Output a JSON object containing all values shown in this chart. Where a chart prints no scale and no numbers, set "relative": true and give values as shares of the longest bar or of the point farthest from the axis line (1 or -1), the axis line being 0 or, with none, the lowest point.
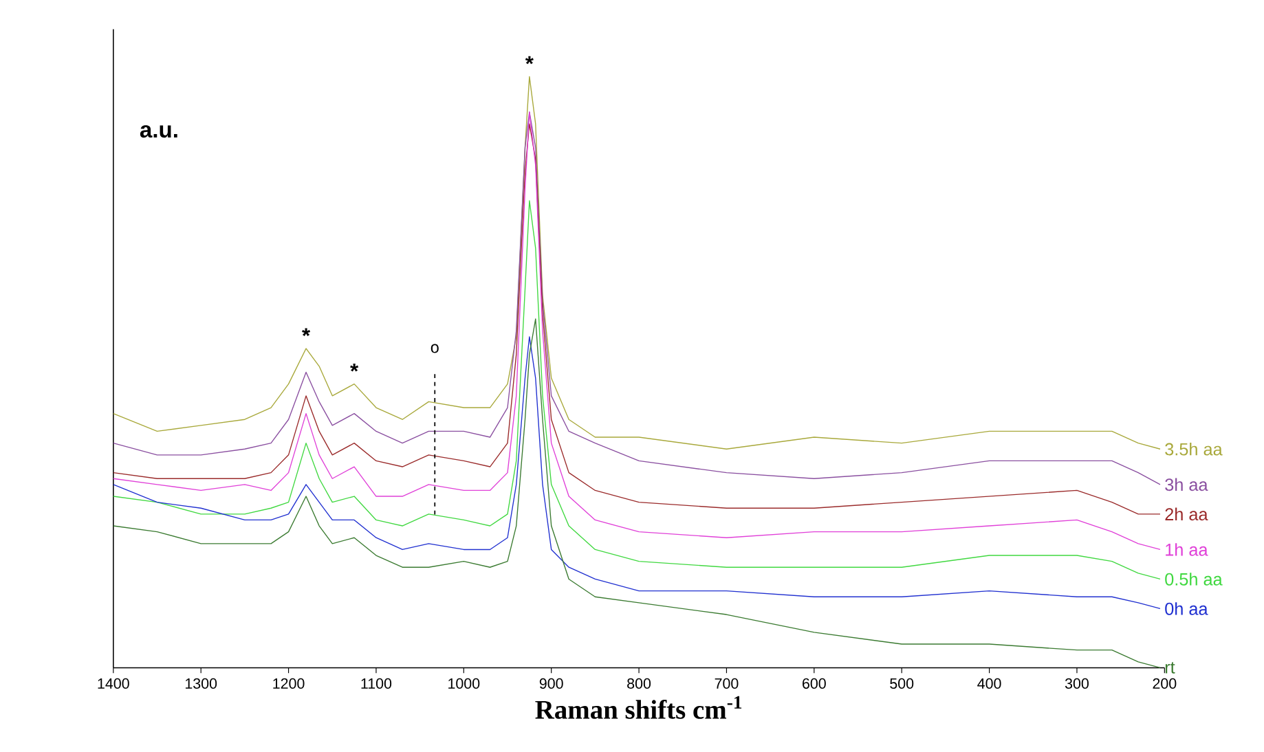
{
  "chart_data": {
    "type": "line",
    "relative": true,
    "xlabel": "Raman shifts cm$^{-1}$",
    "ylabel": "a.u.",
    "xlim": [
      1400,
      200
    ],
    "xticks": [
      1400,
      1300,
      1200,
      1100,
      1000,
      900,
      800,
      700,
      600,
      500,
      400,
      300,
      200
    ],
    "marker": "none",
    "line_style": "solid",
    "x": [
      1400,
      1350,
      1300,
      1250,
      1220,
      1200,
      1180,
      1165,
      1150,
      1125,
      1100,
      1070,
      1040,
      1000,
      970,
      950,
      940,
      930,
      925,
      918,
      910,
      900,
      880,
      850,
      800,
      700,
      600,
      500,
      400,
      300,
      260,
      230,
      205
    ],
    "series": [
      {
        "name": "3.5h aa",
        "color": "#a8a83a",
        "values": [
          0.43,
          0.4,
          0.41,
          0.42,
          0.44,
          0.48,
          0.54,
          0.51,
          0.46,
          0.48,
          0.44,
          0.42,
          0.45,
          0.44,
          0.44,
          0.48,
          0.56,
          0.88,
          1,
          0.92,
          0.63,
          0.49,
          0.42,
          0.39,
          0.39,
          0.37,
          0.39,
          0.38,
          0.4,
          0.4,
          0.4,
          0.38,
          0.37
        ]
      },
      {
        "name": "3h aa",
        "color": "#8a4fa0",
        "values": [
          0.38,
          0.36,
          0.36,
          0.37,
          0.38,
          0.42,
          0.5,
          0.45,
          0.41,
          0.43,
          0.4,
          0.38,
          0.4,
          0.4,
          0.39,
          0.44,
          0.57,
          0.88,
          0.94,
          0.88,
          0.62,
          0.46,
          0.4,
          0.38,
          0.35,
          0.33,
          0.32,
          0.33,
          0.35,
          0.35,
          0.35,
          0.33,
          0.31
        ]
      },
      {
        "name": "2h aa",
        "color": "#9a2a2a",
        "values": [
          0.33,
          0.32,
          0.32,
          0.32,
          0.33,
          0.36,
          0.46,
          0.4,
          0.36,
          0.38,
          0.35,
          0.34,
          0.36,
          0.35,
          0.34,
          0.38,
          0.53,
          0.84,
          0.92,
          0.86,
          0.6,
          0.42,
          0.33,
          0.3,
          0.28,
          0.27,
          0.27,
          0.28,
          0.29,
          0.3,
          0.28,
          0.26,
          0.26
        ]
      },
      {
        "name": "1h aa",
        "color": "#e040d8",
        "values": [
          0.32,
          0.31,
          0.3,
          0.31,
          0.3,
          0.33,
          0.43,
          0.36,
          0.32,
          0.34,
          0.29,
          0.29,
          0.31,
          0.3,
          0.3,
          0.33,
          0.46,
          0.81,
          0.94,
          0.85,
          0.57,
          0.38,
          0.29,
          0.25,
          0.23,
          0.22,
          0.23,
          0.23,
          0.24,
          0.25,
          0.23,
          0.21,
          0.2
        ]
      },
      {
        "name": "0.5h aa",
        "color": "#40d840",
        "values": [
          0.29,
          0.28,
          0.26,
          0.26,
          0.27,
          0.28,
          0.38,
          0.32,
          0.28,
          0.29,
          0.25,
          0.24,
          0.26,
          0.25,
          0.24,
          0.26,
          0.35,
          0.64,
          0.79,
          0.71,
          0.46,
          0.31,
          0.24,
          0.2,
          0.18,
          0.17,
          0.17,
          0.17,
          0.19,
          0.19,
          0.18,
          0.16,
          0.15
        ]
      },
      {
        "name": "0h aa",
        "color": "#2030d0",
        "values": [
          0.31,
          0.28,
          0.27,
          0.25,
          0.25,
          0.26,
          0.31,
          0.28,
          0.25,
          0.25,
          0.22,
          0.2,
          0.21,
          0.2,
          0.2,
          0.22,
          0.31,
          0.49,
          0.56,
          0.49,
          0.31,
          0.2,
          0.17,
          0.15,
          0.13,
          0.13,
          0.12,
          0.12,
          0.13,
          0.12,
          0.12,
          0.11,
          0.1
        ]
      },
      {
        "name": "rt",
        "color": "#3a7a30",
        "values": [
          0.24,
          0.23,
          0.21,
          0.21,
          0.21,
          0.23,
          0.29,
          0.24,
          0.21,
          0.22,
          0.19,
          0.17,
          0.17,
          0.18,
          0.17,
          0.18,
          0.24,
          0.42,
          0.53,
          0.59,
          0.42,
          0.24,
          0.15,
          0.12,
          0.11,
          0.09,
          0.06,
          0.04,
          0.04,
          0.03,
          0.03,
          0.01,
          0
        ]
      }
    ],
    "annotations": [
      {
        "text": "*",
        "x": 1180,
        "y": 0.54
      },
      {
        "text": "*",
        "x": 1125,
        "y": 0.48
      },
      {
        "text": "*",
        "x": 925,
        "y": 1
      }
    ],
    "ref_lines": [
      {
        "axis": "x",
        "value": 1033,
        "label": "o",
        "line_style": "dashed"
      }
    ]
  }
}
